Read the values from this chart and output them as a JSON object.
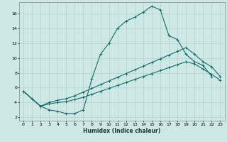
{
  "xlabel": "Humidex (Indice chaleur)",
  "bg_color": "#cde8e5",
  "grid_color": "#b8d5d2",
  "line_color": "#1a6b6b",
  "xlim": [
    -0.5,
    23.5
  ],
  "ylim": [
    1.5,
    17.5
  ],
  "yticks": [
    2,
    4,
    6,
    8,
    10,
    12,
    14,
    16
  ],
  "xticks": [
    0,
    1,
    2,
    3,
    4,
    5,
    6,
    7,
    8,
    9,
    10,
    11,
    12,
    13,
    14,
    15,
    16,
    17,
    18,
    19,
    20,
    21,
    22,
    23
  ],
  "s1x": [
    0,
    1,
    2,
    3,
    4,
    5,
    6,
    7,
    8,
    9,
    10,
    11,
    12,
    13,
    14,
    15,
    16,
    17,
    18,
    19,
    20,
    21,
    22
  ],
  "s1y": [
    5.5,
    4.5,
    3.5,
    3.0,
    2.8,
    2.5,
    2.5,
    3.0,
    7.2,
    10.5,
    12.0,
    14.0,
    15.0,
    15.5,
    16.2,
    17.0,
    16.5,
    13.0,
    12.5,
    10.5,
    9.5,
    9.0,
    7.5
  ],
  "s2x": [
    0,
    2,
    3,
    4,
    5,
    6,
    7,
    8,
    9,
    10,
    11,
    12,
    13,
    14,
    15,
    16,
    17,
    18,
    19,
    20,
    21,
    22,
    23
  ],
  "s2y": [
    5.5,
    3.5,
    4.0,
    4.3,
    4.5,
    4.9,
    5.4,
    5.9,
    6.4,
    6.9,
    7.4,
    7.9,
    8.4,
    8.9,
    9.4,
    9.9,
    10.4,
    10.9,
    11.4,
    10.5,
    9.5,
    8.8,
    7.5
  ],
  "s3x": [
    0,
    2,
    3,
    4,
    5,
    6,
    7,
    8,
    9,
    10,
    11,
    12,
    13,
    14,
    15,
    16,
    17,
    18,
    19,
    20,
    21,
    22,
    23
  ],
  "s3y": [
    5.5,
    3.5,
    3.8,
    4.0,
    4.1,
    4.4,
    4.7,
    5.1,
    5.5,
    5.9,
    6.3,
    6.7,
    7.1,
    7.5,
    7.9,
    8.3,
    8.7,
    9.1,
    9.5,
    9.2,
    8.5,
    7.8,
    7.0
  ]
}
